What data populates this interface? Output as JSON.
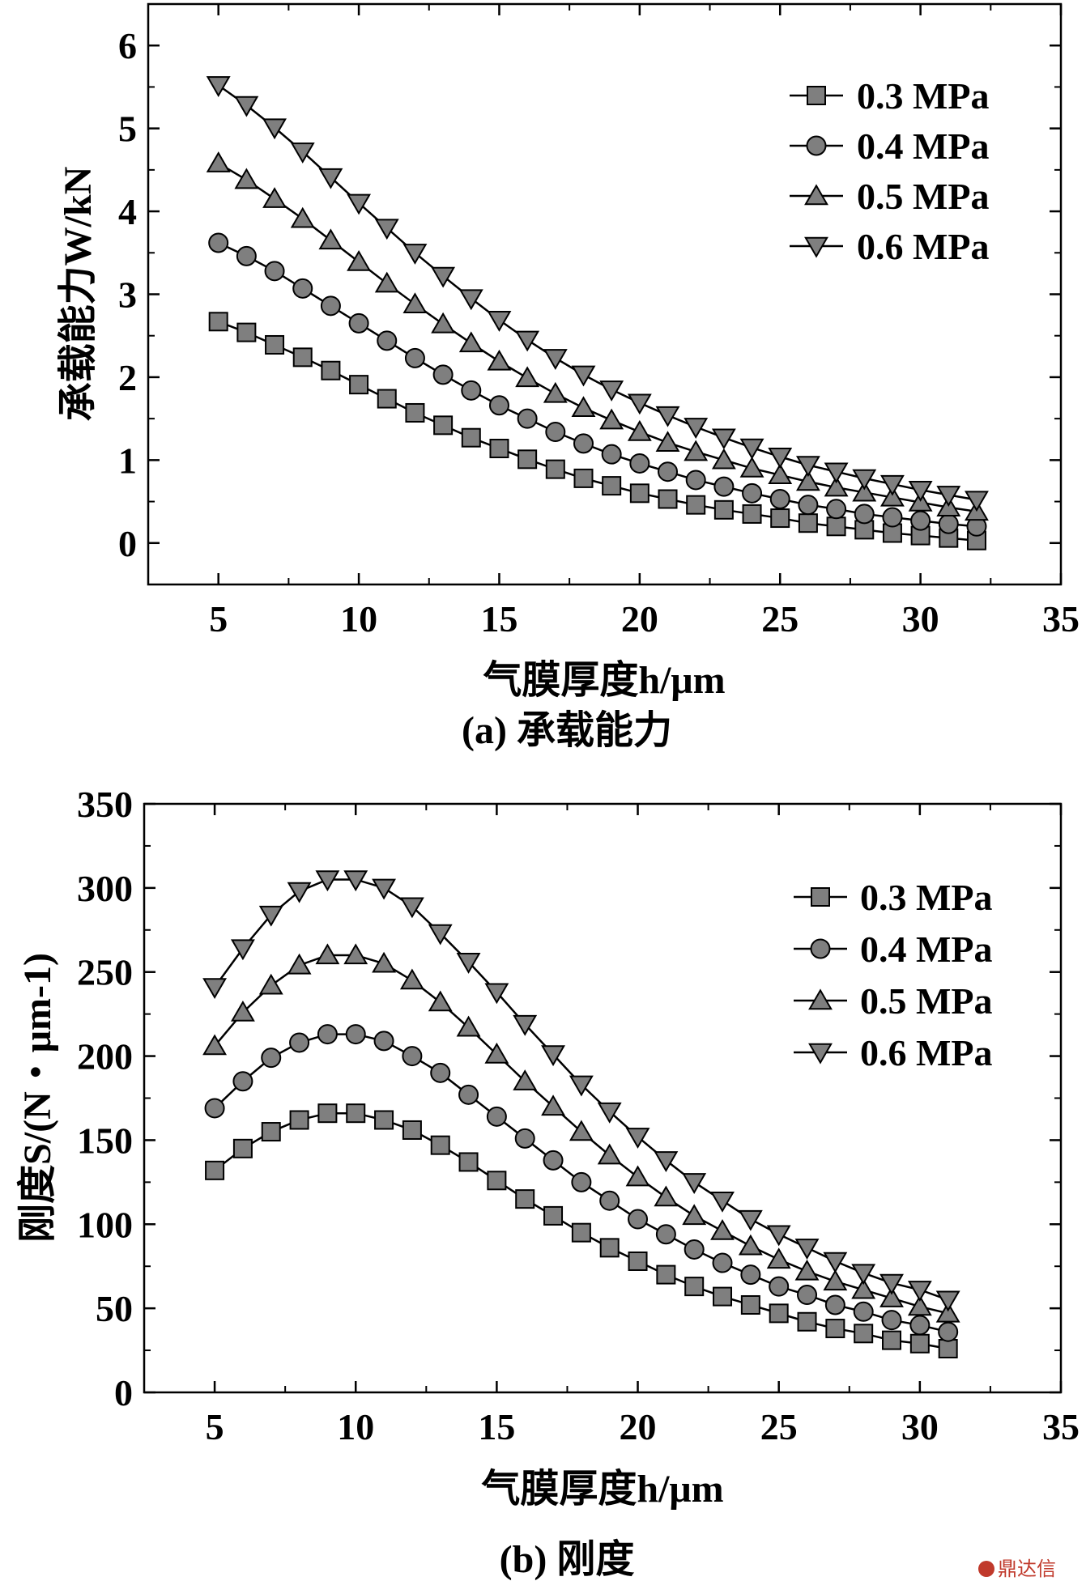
{
  "chart_data": [
    {
      "type": "line",
      "caption": "(a) 承载能力",
      "xlabel": "气膜厚度h/μm",
      "ylabel": "承载能力W/kN",
      "xlim": [
        2.5,
        35
      ],
      "ylim": [
        -0.5,
        6.5
      ],
      "xticks": [
        5,
        10,
        15,
        20,
        25,
        30,
        35
      ],
      "yticks": [
        0,
        1,
        2,
        3,
        4,
        5,
        6
      ],
      "legend_position": "top-right",
      "series": [
        {
          "name": "0.3 MPa",
          "marker": "square",
          "x": [
            5,
            6,
            7,
            8,
            9,
            10,
            11,
            12,
            13,
            14,
            15,
            16,
            17,
            18,
            19,
            20,
            21,
            22,
            23,
            24,
            25,
            26,
            27,
            28,
            29,
            30,
            31,
            32
          ],
          "y": [
            2.67,
            2.54,
            2.39,
            2.24,
            2.08,
            1.91,
            1.74,
            1.57,
            1.42,
            1.27,
            1.14,
            1.01,
            0.89,
            0.78,
            0.69,
            0.6,
            0.53,
            0.46,
            0.4,
            0.35,
            0.3,
            0.24,
            0.2,
            0.16,
            0.12,
            0.09,
            0.06,
            0.03
          ]
        },
        {
          "name": "0.4 MPa",
          "marker": "circle",
          "x": [
            5,
            6,
            7,
            8,
            9,
            10,
            11,
            12,
            13,
            14,
            15,
            16,
            17,
            18,
            19,
            20,
            21,
            22,
            23,
            24,
            25,
            26,
            27,
            28,
            29,
            30,
            31,
            32
          ],
          "y": [
            3.62,
            3.46,
            3.28,
            3.07,
            2.86,
            2.65,
            2.44,
            2.23,
            2.03,
            1.84,
            1.66,
            1.5,
            1.34,
            1.2,
            1.07,
            0.96,
            0.86,
            0.76,
            0.68,
            0.6,
            0.53,
            0.46,
            0.41,
            0.35,
            0.31,
            0.27,
            0.23,
            0.2
          ]
        },
        {
          "name": "0.5 MPa",
          "marker": "triangle-up",
          "x": [
            5,
            6,
            7,
            8,
            9,
            10,
            11,
            12,
            13,
            14,
            15,
            16,
            17,
            18,
            19,
            20,
            21,
            22,
            23,
            24,
            25,
            26,
            27,
            28,
            29,
            30,
            31,
            32
          ],
          "y": [
            4.58,
            4.38,
            4.15,
            3.91,
            3.65,
            3.39,
            3.13,
            2.88,
            2.64,
            2.41,
            2.19,
            1.99,
            1.8,
            1.63,
            1.48,
            1.34,
            1.21,
            1.1,
            1.0,
            0.9,
            0.82,
            0.74,
            0.67,
            0.61,
            0.55,
            0.49,
            0.43,
            0.38
          ]
        },
        {
          "name": "0.6 MPa",
          "marker": "triangle-down",
          "x": [
            5,
            6,
            7,
            8,
            9,
            10,
            11,
            12,
            13,
            14,
            15,
            16,
            17,
            18,
            19,
            20,
            21,
            22,
            23,
            24,
            25,
            26,
            27,
            28,
            29,
            30,
            31,
            32
          ],
          "y": [
            5.52,
            5.28,
            5.01,
            4.72,
            4.41,
            4.1,
            3.8,
            3.5,
            3.22,
            2.95,
            2.69,
            2.45,
            2.23,
            2.03,
            1.85,
            1.69,
            1.54,
            1.4,
            1.27,
            1.15,
            1.04,
            0.94,
            0.86,
            0.78,
            0.71,
            0.64,
            0.58,
            0.52
          ]
        }
      ]
    },
    {
      "type": "line",
      "caption": "(b) 刚度",
      "xlabel": "气膜厚度h/μm",
      "ylabel": "刚度S/(N・μm-1)",
      "xlim": [
        2.5,
        35
      ],
      "ylim": [
        0,
        350
      ],
      "xticks": [
        5,
        10,
        15,
        20,
        25,
        30,
        35
      ],
      "yticks": [
        0,
        50,
        100,
        150,
        200,
        250,
        300,
        350
      ],
      "legend_position": "top-right",
      "series": [
        {
          "name": "0.3 MPa",
          "marker": "square",
          "x": [
            5,
            6,
            7,
            8,
            9,
            10,
            11,
            12,
            13,
            14,
            15,
            16,
            17,
            18,
            19,
            20,
            21,
            22,
            23,
            24,
            25,
            26,
            27,
            28,
            29,
            30,
            31
          ],
          "y": [
            132,
            145,
            155,
            162,
            166,
            166,
            162,
            156,
            147,
            137,
            126,
            115,
            105,
            95,
            86,
            78,
            70,
            63,
            57,
            52,
            47,
            42,
            38,
            35,
            31,
            29,
            26
          ]
        },
        {
          "name": "0.4 MPa",
          "marker": "circle",
          "x": [
            5,
            6,
            7,
            8,
            9,
            10,
            11,
            12,
            13,
            14,
            15,
            16,
            17,
            18,
            19,
            20,
            21,
            22,
            23,
            24,
            25,
            26,
            27,
            28,
            29,
            30,
            31
          ],
          "y": [
            169,
            185,
            199,
            208,
            213,
            213,
            209,
            200,
            190,
            177,
            164,
            151,
            138,
            125,
            114,
            103,
            94,
            85,
            77,
            70,
            63,
            58,
            52,
            48,
            43,
            40,
            36
          ]
        },
        {
          "name": "0.5 MPa",
          "marker": "triangle-up",
          "x": [
            5,
            6,
            7,
            8,
            9,
            10,
            11,
            12,
            13,
            14,
            15,
            16,
            17,
            18,
            19,
            20,
            21,
            22,
            23,
            24,
            25,
            26,
            27,
            28,
            29,
            30,
            31
          ],
          "y": [
            206,
            226,
            242,
            254,
            260,
            260,
            255,
            245,
            232,
            217,
            201,
            185,
            170,
            155,
            141,
            128,
            116,
            105,
            96,
            87,
            79,
            72,
            66,
            61,
            56,
            51,
            47
          ]
        },
        {
          "name": "0.6 MPa",
          "marker": "triangle-down",
          "x": [
            5,
            6,
            7,
            8,
            9,
            10,
            11,
            12,
            13,
            14,
            15,
            16,
            17,
            18,
            19,
            20,
            21,
            22,
            23,
            24,
            25,
            26,
            27,
            28,
            29,
            30,
            31
          ],
          "y": [
            241,
            264,
            284,
            298,
            305,
            305,
            300,
            289,
            273,
            256,
            238,
            219,
            201,
            183,
            167,
            152,
            138,
            125,
            114,
            103,
            94,
            86,
            78,
            71,
            65,
            61,
            55
          ]
        }
      ]
    }
  ],
  "watermark": "鼎达信"
}
